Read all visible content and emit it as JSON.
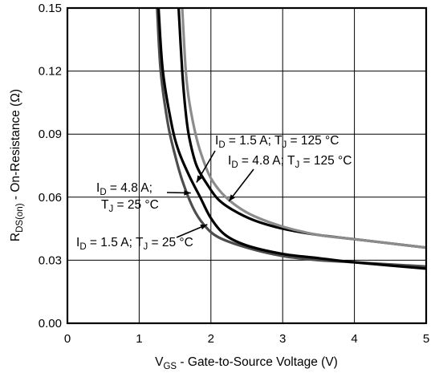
{
  "chart_data": {
    "type": "line",
    "title": "",
    "xlabel": {
      "main": "V",
      "sub": "GS",
      "rest": " - Gate-to-Source Voltage (V)"
    },
    "ylabel": {
      "main": "R",
      "sub": "DS(on)",
      "rest": " - On-Resistance (Ω)"
    },
    "xlim": [
      0,
      5
    ],
    "ylim": [
      0,
      0.15
    ],
    "xticks": [
      0,
      1,
      2,
      3,
      4,
      5
    ],
    "xtick_labels": [
      "0",
      "1",
      "2",
      "3",
      "4",
      "5"
    ],
    "yticks": [
      0,
      0.03,
      0.06,
      0.09,
      0.12,
      0.15
    ],
    "ytick_labels": [
      "0.00",
      "0.03",
      "0.06",
      "0.09",
      "0.12",
      "0.15"
    ],
    "grid": true,
    "legend": "none",
    "series": [
      {
        "id": "s1",
        "color": "#4d4d4d",
        "x": [
          1.25,
          1.3,
          1.4,
          1.5,
          1.6,
          1.75,
          1.9,
          2.1,
          2.5,
          3.0,
          3.5,
          4.0,
          5.0
        ],
        "y": [
          0.15,
          0.12,
          0.095,
          0.08,
          0.068,
          0.055,
          0.047,
          0.041,
          0.036,
          0.032,
          0.03,
          0.029,
          0.027
        ]
      },
      {
        "id": "s2",
        "color": "#000000",
        "x": [
          1.27,
          1.33,
          1.45,
          1.55,
          1.7,
          1.85,
          2.0,
          2.2,
          2.5,
          3.0,
          3.5,
          4.0,
          5.0
        ],
        "y": [
          0.15,
          0.12,
          0.095,
          0.082,
          0.07,
          0.06,
          0.05,
          0.042,
          0.037,
          0.033,
          0.031,
          0.029,
          0.026
        ]
      },
      {
        "id": "s3",
        "color": "#000000",
        "x": [
          1.55,
          1.6,
          1.65,
          1.7,
          1.8,
          1.95,
          2.1,
          2.3,
          2.6,
          3.0,
          3.5,
          4.0,
          5.0
        ],
        "y": [
          0.15,
          0.12,
          0.1,
          0.088,
          0.075,
          0.066,
          0.059,
          0.054,
          0.049,
          0.045,
          0.042,
          0.04,
          0.036
        ]
      },
      {
        "id": "s4",
        "color": "#8c8c8c",
        "x": [
          1.6,
          1.65,
          1.7,
          1.8,
          1.9,
          2.0,
          2.15,
          2.35,
          2.6,
          3.0,
          3.5,
          4.0,
          5.0
        ],
        "y": [
          0.15,
          0.12,
          0.105,
          0.088,
          0.077,
          0.069,
          0.062,
          0.056,
          0.051,
          0.046,
          0.042,
          0.04,
          0.036
        ]
      }
    ],
    "annotations": [
      {
        "id": "a1",
        "line1": {
          "a": "I",
          "as": "D",
          "b": " = 1.5 A; T",
          "bs": "J",
          "c": " = 125 °C"
        },
        "line2": null,
        "arrow_to": [
          1.8,
          0.067
        ]
      },
      {
        "id": "a2",
        "line1": {
          "a": "I",
          "as": "D",
          "b": " = 4.8 A; T",
          "bs": "J",
          "c": " = 125 °C"
        },
        "line2": null,
        "arrow_to": [
          2.25,
          0.058
        ]
      },
      {
        "id": "a3",
        "line1": {
          "a": "I",
          "as": "D",
          "b": " = 4.8 A;",
          "bs": "",
          "c": ""
        },
        "line2": {
          "a": "T",
          "as": "J",
          "b": " = 25 °C",
          "bs": "",
          "c": ""
        },
        "arrow_to": [
          1.72,
          0.062
        ]
      },
      {
        "id": "a4",
        "line1": {
          "a": "I",
          "as": "D",
          "b": " = 1.5 A; T",
          "bs": "J",
          "c": " = 25 °C"
        },
        "line2": null,
        "arrow_to": [
          1.95,
          0.047
        ]
      }
    ]
  }
}
